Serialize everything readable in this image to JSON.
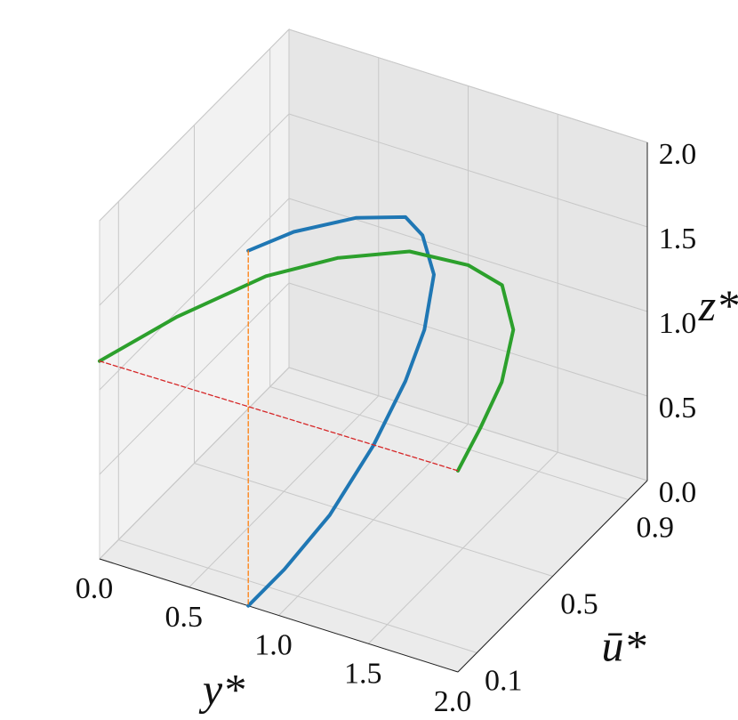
{
  "chart_data": {
    "type": "line3d",
    "xlabel": "y*",
    "ylabel": "ū*",
    "zlabel": "z*",
    "xlim": [
      0,
      2
    ],
    "ylim": [
      0,
      1
    ],
    "zlim": [
      0,
      2
    ],
    "xticks": [
      "0.0",
      "0.5",
      "1.0",
      "1.5",
      "2.0"
    ],
    "yticks": [
      "0.1",
      "0.5",
      "0.9"
    ],
    "zticks": [
      "0.0",
      "0.5",
      "1.0",
      "1.5",
      "2.0"
    ],
    "grid": true,
    "series": [
      {
        "color": "#1f77b4",
        "style": "solid",
        "points": [
          [
            0.83,
            0,
            2.1
          ],
          [
            0.83,
            0.24,
            1.94
          ],
          [
            0.83,
            0.57,
            1.65
          ],
          [
            0.83,
            0.83,
            1.36
          ],
          [
            0.83,
            0.92,
            1.15
          ],
          [
            0.83,
            0.98,
            0.85
          ],
          [
            0.83,
            0.93,
            0.58
          ],
          [
            0.83,
            0.83,
            0.39
          ],
          [
            0.83,
            0.66,
            0.2
          ],
          [
            0.83,
            0.43,
            0.05
          ],
          [
            0.83,
            0.19,
            0.0
          ],
          [
            0.83,
            0,
            0
          ]
        ]
      },
      {
        "color": "#2ca02c",
        "style": "solid",
        "points": [
          [
            0,
            0,
            1.17
          ],
          [
            0.2,
            0.22,
            1.25
          ],
          [
            0.4,
            0.5,
            1.24
          ],
          [
            0.6,
            0.69,
            1.2
          ],
          [
            0.8,
            0.88,
            1.09
          ],
          [
            1.0,
            1.0,
            0.94
          ],
          [
            1.2,
            0.99,
            0.9
          ],
          [
            1.4,
            0.86,
            0.85
          ],
          [
            1.6,
            0.61,
            0.89
          ],
          [
            1.8,
            0.31,
            1.03
          ],
          [
            2.0,
            0,
            1.19
          ]
        ]
      },
      {
        "color": "#ff7f0e",
        "style": "dashed",
        "points": [
          [
            0.83,
            0,
            2.1
          ],
          [
            0.83,
            0,
            0
          ]
        ]
      },
      {
        "color": "#d62728",
        "style": "dashed",
        "points": [
          [
            0,
            0,
            1.17
          ],
          [
            2.0,
            0,
            1.19
          ]
        ]
      }
    ]
  }
}
